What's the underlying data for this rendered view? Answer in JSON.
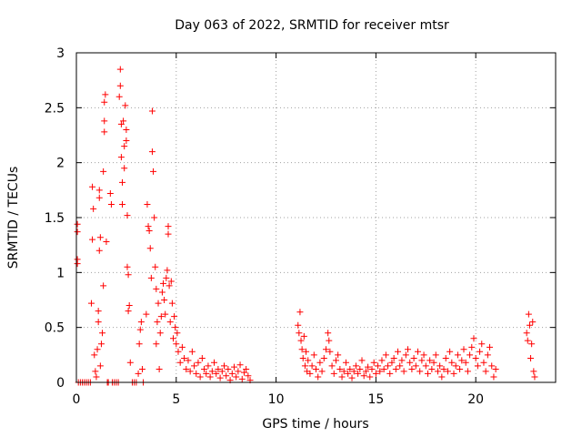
{
  "chart_data": {
    "type": "scatter",
    "title": "Day 063 of 2022, SRMTID for receiver mtsr",
    "xlabel": "GPS time / hours",
    "ylabel": "SRMTID / TECUs",
    "xlim": [
      0,
      24
    ],
    "ylim": [
      0,
      3
    ],
    "x_ticks": [
      0,
      5,
      10,
      15,
      20
    ],
    "x_tick_labels": [
      "0",
      "5",
      "10",
      "15",
      "20"
    ],
    "y_ticks": [
      0,
      0.5,
      1,
      1.5,
      2,
      2.5,
      3
    ],
    "y_tick_labels": [
      "0",
      "0.5",
      "1",
      "1.5",
      "2",
      "2.5",
      "3"
    ],
    "grid": true,
    "marker": "+",
    "color": "#ff0000",
    "series": [
      {
        "name": "SRMTID",
        "points": [
          [
            0.05,
            1.44
          ],
          [
            0.05,
            1.37
          ],
          [
            0.05,
            1.12
          ],
          [
            0.05,
            1.08
          ],
          [
            0.1,
            0.0
          ],
          [
            0.2,
            0.0
          ],
          [
            0.3,
            0.0
          ],
          [
            0.4,
            0.0
          ],
          [
            0.5,
            0.0
          ],
          [
            0.6,
            0.0
          ],
          [
            0.7,
            0.0
          ],
          [
            0.75,
            0.72
          ],
          [
            0.8,
            1.78
          ],
          [
            0.8,
            1.3
          ],
          [
            0.85,
            1.58
          ],
          [
            0.9,
            0.25
          ],
          [
            0.95,
            0.1
          ],
          [
            1.0,
            0.05
          ],
          [
            1.05,
            0.3
          ],
          [
            1.1,
            0.55
          ],
          [
            1.1,
            0.65
          ],
          [
            1.15,
            1.75
          ],
          [
            1.15,
            1.68
          ],
          [
            1.15,
            1.2
          ],
          [
            1.2,
            1.32
          ],
          [
            1.2,
            0.15
          ],
          [
            1.25,
            0.35
          ],
          [
            1.3,
            0.45
          ],
          [
            1.35,
            0.88
          ],
          [
            1.35,
            1.92
          ],
          [
            1.4,
            2.28
          ],
          [
            1.4,
            2.38
          ],
          [
            1.4,
            2.55
          ],
          [
            1.45,
            2.62
          ],
          [
            1.5,
            1.28
          ],
          [
            1.55,
            0.0
          ],
          [
            1.6,
            0.0
          ],
          [
            1.7,
            1.72
          ],
          [
            1.75,
            1.62
          ],
          [
            1.8,
            0.0
          ],
          [
            1.9,
            0.0
          ],
          [
            2.0,
            0.0
          ],
          [
            2.1,
            0.0
          ],
          [
            2.15,
            2.6
          ],
          [
            2.2,
            2.85
          ],
          [
            2.2,
            2.7
          ],
          [
            2.25,
            2.35
          ],
          [
            2.25,
            2.05
          ],
          [
            2.3,
            1.82
          ],
          [
            2.3,
            1.62
          ],
          [
            2.35,
            2.38
          ],
          [
            2.4,
            2.15
          ],
          [
            2.4,
            1.95
          ],
          [
            2.45,
            2.52
          ],
          [
            2.5,
            2.3
          ],
          [
            2.5,
            2.2
          ],
          [
            2.55,
            1.52
          ],
          [
            2.55,
            1.05
          ],
          [
            2.6,
            0.98
          ],
          [
            2.6,
            0.65
          ],
          [
            2.65,
            0.7
          ],
          [
            2.7,
            0.18
          ],
          [
            2.8,
            0.0
          ],
          [
            2.9,
            0.0
          ],
          [
            3.0,
            0.0
          ],
          [
            3.1,
            0.08
          ],
          [
            3.15,
            0.35
          ],
          [
            3.2,
            0.48
          ],
          [
            3.25,
            0.55
          ],
          [
            3.3,
            0.12
          ],
          [
            3.35,
            0.0
          ],
          [
            3.5,
            0.62
          ],
          [
            3.55,
            1.62
          ],
          [
            3.6,
            1.42
          ],
          [
            3.65,
            1.38
          ],
          [
            3.7,
            1.22
          ],
          [
            3.75,
            0.95
          ],
          [
            3.8,
            2.47
          ],
          [
            3.8,
            2.1
          ],
          [
            3.85,
            1.92
          ],
          [
            3.9,
            1.5
          ],
          [
            3.95,
            1.05
          ],
          [
            4.0,
            0.85
          ],
          [
            4.0,
            0.35
          ],
          [
            4.05,
            0.55
          ],
          [
            4.1,
            0.72
          ],
          [
            4.15,
            0.12
          ],
          [
            4.2,
            0.45
          ],
          [
            4.25,
            0.6
          ],
          [
            4.3,
            0.82
          ],
          [
            4.35,
            0.9
          ],
          [
            4.4,
            0.75
          ],
          [
            4.45,
            0.62
          ],
          [
            4.5,
            0.95
          ],
          [
            4.55,
            1.02
          ],
          [
            4.6,
            1.35
          ],
          [
            4.6,
            1.42
          ],
          [
            4.65,
            0.88
          ],
          [
            4.7,
            0.55
          ],
          [
            4.75,
            0.92
          ],
          [
            4.8,
            0.72
          ],
          [
            4.85,
            0.4
          ],
          [
            4.9,
            0.6
          ],
          [
            4.95,
            0.5
          ],
          [
            5.0,
            0.35
          ],
          [
            5.05,
            0.45
          ],
          [
            5.1,
            0.28
          ],
          [
            5.2,
            0.18
          ],
          [
            5.3,
            0.32
          ],
          [
            5.4,
            0.22
          ],
          [
            5.5,
            0.12
          ],
          [
            5.6,
            0.2
          ],
          [
            5.7,
            0.1
          ],
          [
            5.8,
            0.28
          ],
          [
            5.9,
            0.15
          ],
          [
            6.0,
            0.08
          ],
          [
            6.1,
            0.18
          ],
          [
            6.2,
            0.05
          ],
          [
            6.3,
            0.22
          ],
          [
            6.4,
            0.12
          ],
          [
            6.5,
            0.08
          ],
          [
            6.6,
            0.15
          ],
          [
            6.7,
            0.05
          ],
          [
            6.8,
            0.1
          ],
          [
            6.9,
            0.18
          ],
          [
            7.0,
            0.08
          ],
          [
            7.1,
            0.12
          ],
          [
            7.2,
            0.04
          ],
          [
            7.3,
            0.1
          ],
          [
            7.4,
            0.15
          ],
          [
            7.5,
            0.06
          ],
          [
            7.6,
            0.12
          ],
          [
            7.7,
            0.02
          ],
          [
            7.8,
            0.08
          ],
          [
            7.9,
            0.14
          ],
          [
            8.0,
            0.05
          ],
          [
            8.1,
            0.1
          ],
          [
            8.2,
            0.16
          ],
          [
            8.3,
            0.03
          ],
          [
            8.4,
            0.09
          ],
          [
            8.5,
            0.12
          ],
          [
            8.6,
            0.06
          ],
          [
            8.7,
            0.02
          ],
          [
            11.1,
            0.52
          ],
          [
            11.15,
            0.45
          ],
          [
            11.2,
            0.64
          ],
          [
            11.25,
            0.38
          ],
          [
            11.3,
            0.3
          ],
          [
            11.35,
            0.22
          ],
          [
            11.4,
            0.42
          ],
          [
            11.45,
            0.15
          ],
          [
            11.5,
            0.28
          ],
          [
            11.55,
            0.1
          ],
          [
            11.6,
            0.2
          ],
          [
            11.7,
            0.08
          ],
          [
            11.8,
            0.15
          ],
          [
            11.9,
            0.25
          ],
          [
            12.0,
            0.12
          ],
          [
            12.1,
            0.05
          ],
          [
            12.2,
            0.18
          ],
          [
            12.3,
            0.1
          ],
          [
            12.4,
            0.22
          ],
          [
            12.5,
            0.3
          ],
          [
            12.6,
            0.45
          ],
          [
            12.65,
            0.38
          ],
          [
            12.7,
            0.28
          ],
          [
            12.8,
            0.15
          ],
          [
            12.9,
            0.08
          ],
          [
            13.0,
            0.2
          ],
          [
            13.1,
            0.25
          ],
          [
            13.2,
            0.12
          ],
          [
            13.3,
            0.05
          ],
          [
            13.4,
            0.1
          ],
          [
            13.5,
            0.18
          ],
          [
            13.6,
            0.08
          ],
          [
            13.7,
            0.12
          ],
          [
            13.8,
            0.04
          ],
          [
            13.9,
            0.1
          ],
          [
            14.0,
            0.15
          ],
          [
            14.1,
            0.08
          ],
          [
            14.2,
            0.12
          ],
          [
            14.3,
            0.2
          ],
          [
            14.4,
            0.06
          ],
          [
            14.5,
            0.1
          ],
          [
            14.6,
            0.14
          ],
          [
            14.7,
            0.05
          ],
          [
            14.8,
            0.12
          ],
          [
            14.9,
            0.18
          ],
          [
            15.0,
            0.08
          ],
          [
            15.1,
            0.15
          ],
          [
            15.2,
            0.1
          ],
          [
            15.3,
            0.2
          ],
          [
            15.4,
            0.12
          ],
          [
            15.5,
            0.25
          ],
          [
            15.6,
            0.15
          ],
          [
            15.7,
            0.08
          ],
          [
            15.8,
            0.18
          ],
          [
            15.9,
            0.22
          ],
          [
            16.0,
            0.12
          ],
          [
            16.1,
            0.28
          ],
          [
            16.2,
            0.15
          ],
          [
            16.3,
            0.2
          ],
          [
            16.4,
            0.1
          ],
          [
            16.5,
            0.25
          ],
          [
            16.6,
            0.3
          ],
          [
            16.7,
            0.18
          ],
          [
            16.8,
            0.12
          ],
          [
            16.9,
            0.22
          ],
          [
            17.0,
            0.15
          ],
          [
            17.1,
            0.28
          ],
          [
            17.2,
            0.1
          ],
          [
            17.3,
            0.2
          ],
          [
            17.4,
            0.25
          ],
          [
            17.5,
            0.15
          ],
          [
            17.6,
            0.08
          ],
          [
            17.7,
            0.2
          ],
          [
            17.8,
            0.12
          ],
          [
            17.9,
            0.18
          ],
          [
            18.0,
            0.25
          ],
          [
            18.1,
            0.1
          ],
          [
            18.2,
            0.15
          ],
          [
            18.3,
            0.05
          ],
          [
            18.4,
            0.12
          ],
          [
            18.5,
            0.22
          ],
          [
            18.6,
            0.1
          ],
          [
            18.7,
            0.28
          ],
          [
            18.8,
            0.18
          ],
          [
            18.9,
            0.08
          ],
          [
            19.0,
            0.15
          ],
          [
            19.1,
            0.25
          ],
          [
            19.2,
            0.12
          ],
          [
            19.3,
            0.2
          ],
          [
            19.4,
            0.3
          ],
          [
            19.5,
            0.18
          ],
          [
            19.6,
            0.1
          ],
          [
            19.7,
            0.25
          ],
          [
            19.8,
            0.32
          ],
          [
            19.9,
            0.4
          ],
          [
            20.0,
            0.22
          ],
          [
            20.1,
            0.15
          ],
          [
            20.2,
            0.28
          ],
          [
            20.3,
            0.35
          ],
          [
            20.4,
            0.18
          ],
          [
            20.5,
            0.1
          ],
          [
            20.6,
            0.25
          ],
          [
            20.7,
            0.32
          ],
          [
            20.8,
            0.15
          ],
          [
            20.9,
            0.05
          ],
          [
            21.0,
            0.12
          ],
          [
            22.55,
            0.45
          ],
          [
            22.6,
            0.38
          ],
          [
            22.65,
            0.62
          ],
          [
            22.7,
            0.52
          ],
          [
            22.75,
            0.22
          ],
          [
            22.8,
            0.35
          ],
          [
            22.85,
            0.55
          ],
          [
            22.9,
            0.1
          ],
          [
            22.95,
            0.05
          ]
        ]
      }
    ]
  }
}
